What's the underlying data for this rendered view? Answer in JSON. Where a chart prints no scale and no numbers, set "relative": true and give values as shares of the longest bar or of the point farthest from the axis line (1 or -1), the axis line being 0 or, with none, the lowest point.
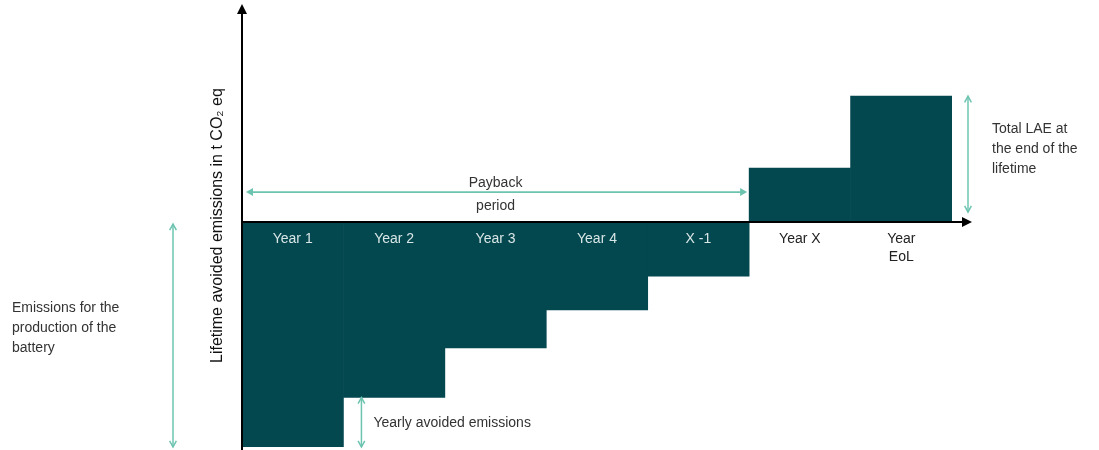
{
  "chart_data": {
    "type": "bar",
    "relative": true,
    "ylabel": "Lifetime avoided emissions in t CO₂ eq",
    "categories": [
      "Year 1",
      "Year 2",
      "Year 3",
      "Year 4",
      "X -1",
      "Year X",
      "Year EoL"
    ],
    "values": [
      -1,
      -0.78,
      -0.56,
      -0.39,
      -0.24,
      0.24,
      0.56
    ],
    "color": "#03474f",
    "annotations": [
      "Payback period",
      "Total LAE at the end of the lifetime",
      "Emissions for the production of the battery",
      "Yearly avoided emissions"
    ]
  }
}
